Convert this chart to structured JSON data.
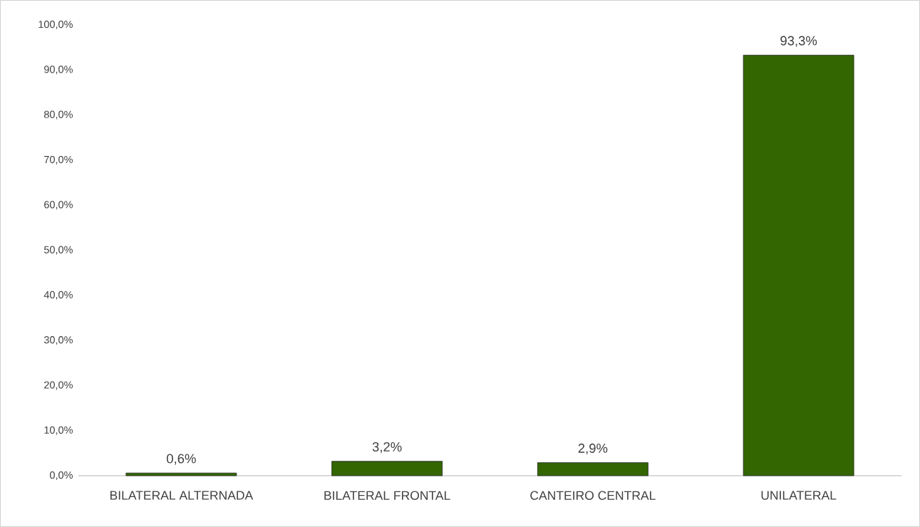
{
  "chart_data": {
    "type": "bar",
    "categories": [
      "BILATERAL ALTERNADA",
      "BILATERAL FRONTAL",
      "CANTEIRO CENTRAL",
      "UNILATERAL"
    ],
    "values": [
      0.6,
      3.2,
      2.9,
      93.3
    ],
    "value_labels": [
      "0,6%",
      "3,2%",
      "2,9%",
      "93,3%"
    ],
    "color": "#336600",
    "ylim": [
      0,
      100
    ],
    "yticks": [
      {
        "value": 0,
        "label": "0,0%"
      },
      {
        "value": 10,
        "label": "10,0%"
      },
      {
        "value": 20,
        "label": "20,0%"
      },
      {
        "value": 30,
        "label": "30,0%"
      },
      {
        "value": 40,
        "label": "40,0%"
      },
      {
        "value": 50,
        "label": "50,0%"
      },
      {
        "value": 60,
        "label": "60,0%"
      },
      {
        "value": 70,
        "label": "70,0%"
      },
      {
        "value": 80,
        "label": "80,0%"
      },
      {
        "value": 90,
        "label": "90,0%"
      },
      {
        "value": 100,
        "label": "100,0%"
      }
    ],
    "grid": false
  }
}
